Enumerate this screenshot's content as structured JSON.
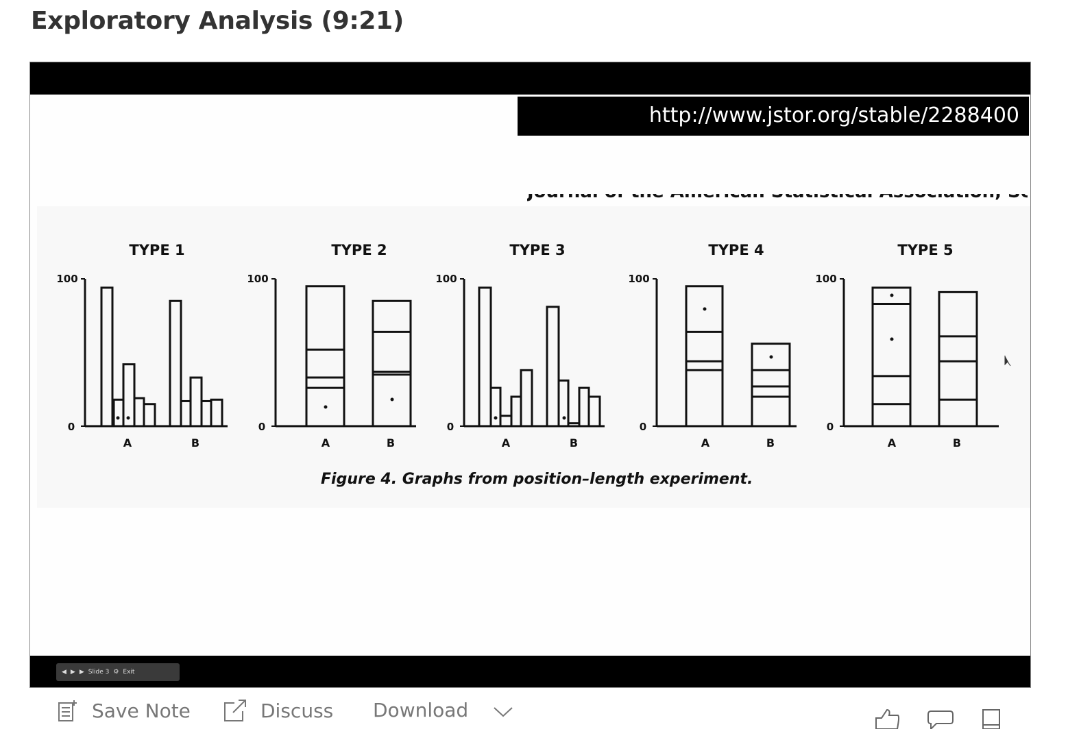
{
  "page": {
    "title": "Exploratory Analysis (9:21)"
  },
  "slide": {
    "url": "http://www.jstor.org/stable/2288400",
    "journal_header": "Journal of the American Statistical Association, September",
    "caption": "Figure 4. Graphs from position–length experiment.",
    "panel_titles": [
      "TYPE 1",
      "TYPE 2",
      "TYPE 3",
      "TYPE 4",
      "TYPE 5"
    ],
    "axis": {
      "top": "100",
      "bottom": "0"
    },
    "categories": [
      "A",
      "B"
    ]
  },
  "player": {
    "controls": {
      "prev": "◀",
      "play": "▶",
      "next": "▶",
      "slide_label": "Slide 3",
      "exit_label": "Exit"
    }
  },
  "actions": {
    "save_note": "Save Note",
    "discuss": "Discuss",
    "download": "Download",
    "icons": [
      "note-icon",
      "external-link-icon",
      "chevron-down-icon",
      "thumbs-up-icon",
      "comment-icon",
      "bookmark-icon"
    ]
  }
}
